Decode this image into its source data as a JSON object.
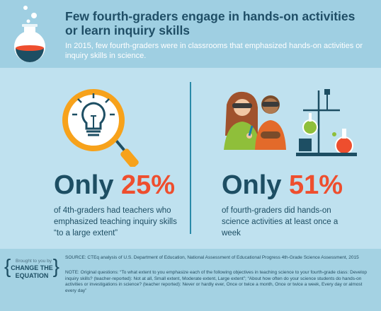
{
  "header": {
    "title": "Few fourth-graders engage in hands-on activities or learn inquiry skills",
    "subtitle": "In 2015, few fourth-graders were in classrooms that emphasized hands-on activities or inquiry skills in science."
  },
  "left": {
    "only": "Only",
    "percent": "25%",
    "description": "of 4th-graders had teachers who emphasized teaching inquiry skills “to a large extent”"
  },
  "right": {
    "only": "Only",
    "percent": "51%",
    "description": "of fourth-graders did hands-on science activities at least once a week"
  },
  "footer": {
    "brought_by": "Brought to you by",
    "logo_line1": "CHANGE THE",
    "logo_line2": "EQUATION",
    "source": "SOURCE: CTEq analysis of U.S. Department of Education, National Assessment of Educational Progress 4th-Grade Science Assessment, 2015",
    "note": "NOTE: Original questions: “To what extent to you emphasize each of the following objectives in teaching science to your fourth-grade class: Develop inquiry skills? (teacher-reported): Not at all, Small extent, Moderate extent, Large extent”; “About how often do your science students do hands-on activities or investigations in science? (teacher reported): Never or hardly ever, Once or twice a month, Once or twice a week, Every day or almost every day”"
  },
  "colors": {
    "dark_teal": "#1d4e63",
    "accent_orange": "#ee4e2e",
    "header_bg": "#9fcfe2",
    "body_bg": "#bfe1ef"
  }
}
